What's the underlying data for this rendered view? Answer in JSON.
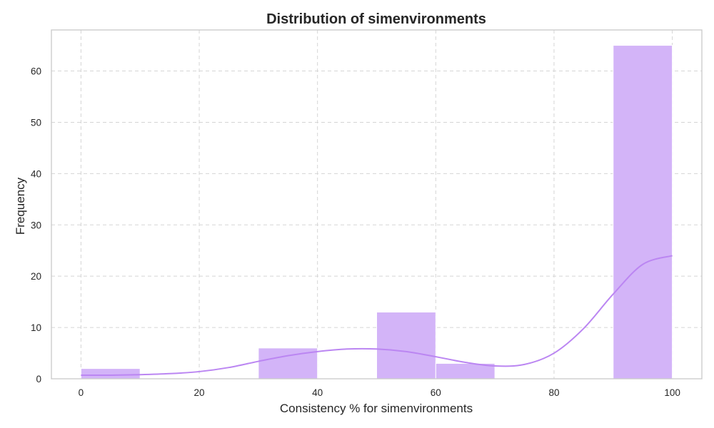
{
  "chart_data": {
    "type": "bar",
    "subtype": "histogram_with_kde",
    "title": "Distribution of simenvironments",
    "xlabel": "Consistency % for simenvironments",
    "ylabel": "Frequency",
    "xlim": [
      -5,
      105
    ],
    "ylim": [
      0,
      68
    ],
    "xticks": [
      0,
      20,
      40,
      60,
      80,
      100
    ],
    "yticks": [
      0,
      10,
      20,
      30,
      40,
      50,
      60
    ],
    "bins": [
      {
        "start": 0,
        "end": 10,
        "count": 2
      },
      {
        "start": 10,
        "end": 20,
        "count": 0
      },
      {
        "start": 20,
        "end": 30,
        "count": 0
      },
      {
        "start": 30,
        "end": 40,
        "count": 6
      },
      {
        "start": 40,
        "end": 50,
        "count": 0
      },
      {
        "start": 50,
        "end": 60,
        "count": 13
      },
      {
        "start": 60,
        "end": 70,
        "count": 3
      },
      {
        "start": 70,
        "end": 80,
        "count": 0
      },
      {
        "start": 80,
        "end": 90,
        "count": 0
      },
      {
        "start": 90,
        "end": 100,
        "count": 65
      }
    ],
    "kde": {
      "x": [
        0,
        5,
        10,
        15,
        20,
        25,
        30,
        35,
        40,
        45,
        50,
        55,
        60,
        65,
        70,
        75,
        80,
        85,
        90,
        95,
        100
      ],
      "y": [
        0.7,
        0.7,
        0.8,
        1.0,
        1.4,
        2.2,
        3.4,
        4.5,
        5.3,
        5.8,
        5.8,
        5.3,
        4.3,
        3.2,
        2.5,
        2.8,
        5.0,
        9.8,
        16.5,
        22.3,
        24.0
      ]
    },
    "grid": true,
    "colors": {
      "bar": "#d3b4f8",
      "kde": "#bb86f2"
    }
  }
}
